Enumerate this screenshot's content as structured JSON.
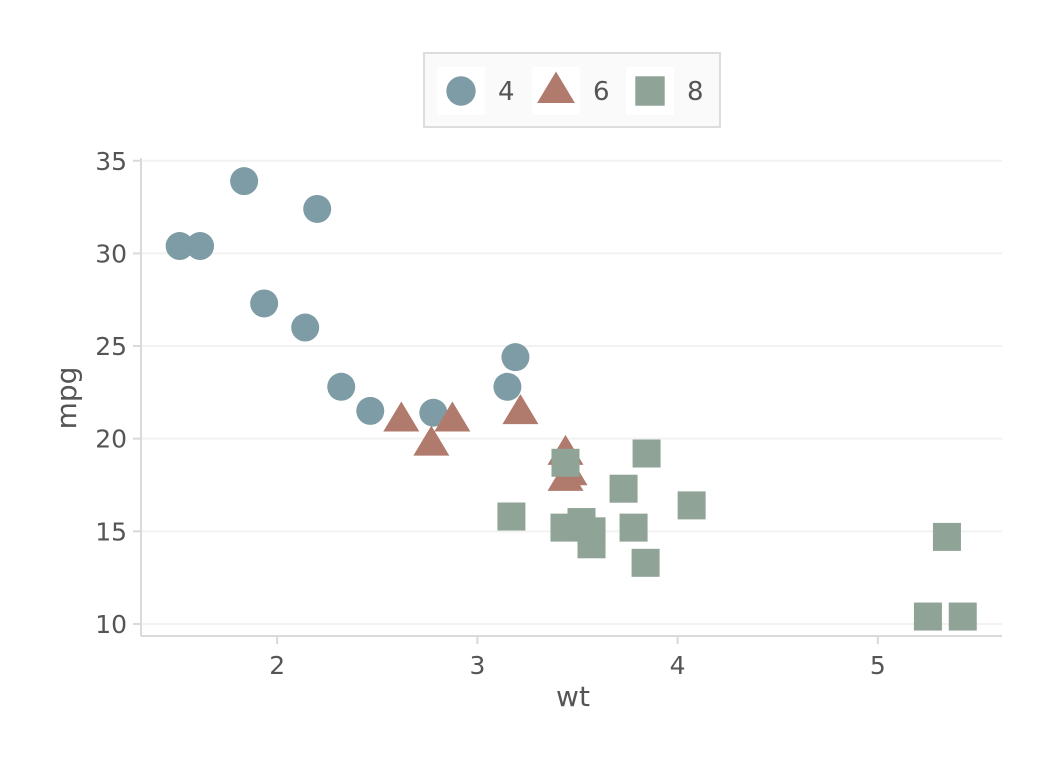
{
  "chart_data": {
    "type": "scatter",
    "xlabel": "wt",
    "ylabel": "mpg",
    "xlim": [
      1.32,
      5.62
    ],
    "ylim": [
      9.35,
      35.15
    ],
    "x_ticks": [
      2,
      3,
      4,
      5
    ],
    "y_ticks": [
      10,
      15,
      20,
      25,
      30,
      35
    ],
    "grid": "horizontal",
    "legend_position": "top",
    "series": [
      {
        "name": "4",
        "marker": "circle",
        "color": "#7d9ca5",
        "points": [
          {
            "x": 1.513,
            "y": 30.4
          },
          {
            "x": 1.615,
            "y": 30.4
          },
          {
            "x": 1.835,
            "y": 33.9
          },
          {
            "x": 1.935,
            "y": 27.3
          },
          {
            "x": 2.14,
            "y": 26.0
          },
          {
            "x": 2.2,
            "y": 32.4
          },
          {
            "x": 2.32,
            "y": 22.8
          },
          {
            "x": 2.465,
            "y": 21.5
          },
          {
            "x": 2.78,
            "y": 21.4
          },
          {
            "x": 3.15,
            "y": 22.8
          },
          {
            "x": 3.19,
            "y": 24.4
          }
        ]
      },
      {
        "name": "6",
        "marker": "triangle",
        "color": "#b07a6d",
        "points": [
          {
            "x": 2.62,
            "y": 21.0
          },
          {
            "x": 2.77,
            "y": 19.7
          },
          {
            "x": 2.875,
            "y": 21.0
          },
          {
            "x": 3.215,
            "y": 21.4
          },
          {
            "x": 3.44,
            "y": 19.2
          },
          {
            "x": 3.44,
            "y": 17.8
          },
          {
            "x": 3.46,
            "y": 18.1
          }
        ]
      },
      {
        "name": "8",
        "marker": "square",
        "color": "#8fa397",
        "points": [
          {
            "x": 3.17,
            "y": 15.8
          },
          {
            "x": 3.435,
            "y": 15.2
          },
          {
            "x": 3.44,
            "y": 18.7
          },
          {
            "x": 3.52,
            "y": 15.5
          },
          {
            "x": 3.57,
            "y": 14.3
          },
          {
            "x": 3.57,
            "y": 15.0
          },
          {
            "x": 3.73,
            "y": 17.3
          },
          {
            "x": 3.78,
            "y": 15.2
          },
          {
            "x": 3.84,
            "y": 13.3
          },
          {
            "x": 3.845,
            "y": 19.2
          },
          {
            "x": 4.07,
            "y": 16.4
          },
          {
            "x": 5.25,
            "y": 10.4
          },
          {
            "x": 5.345,
            "y": 14.7
          },
          {
            "x": 5.424,
            "y": 10.4
          }
        ]
      }
    ]
  }
}
